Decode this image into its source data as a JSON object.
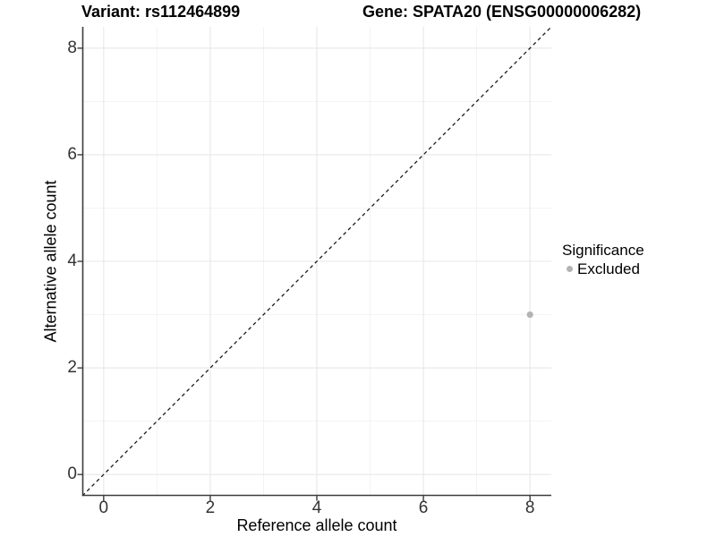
{
  "chart_data": {
    "type": "scatter",
    "titles": {
      "left": "Variant: rs112464899",
      "right": "Gene: SPATA20 (ENSG00000006282)"
    },
    "xlabel": "Reference allele count",
    "ylabel": "Alternative allele count",
    "xlim": [
      -0.4,
      8.4
    ],
    "ylim": [
      -0.4,
      8.4
    ],
    "xticks": [
      0,
      2,
      4,
      6,
      8
    ],
    "yticks": [
      0,
      2,
      4,
      6,
      8
    ],
    "xminor": [
      1,
      3,
      5,
      7
    ],
    "yminor": [
      1,
      3,
      5,
      7
    ],
    "grid": "on",
    "identity_line": {
      "equation": "y = x",
      "style": "dashed"
    },
    "series": [
      {
        "name": "Excluded",
        "color": "#b3b3b3",
        "points": [
          [
            8,
            3
          ]
        ]
      }
    ],
    "legend": {
      "title": "Significance",
      "position": "right",
      "items": [
        {
          "label": "Excluded",
          "color": "#b3b3b3"
        }
      ]
    }
  },
  "colors": {
    "background": "#ffffff",
    "grid_major": "#e7e7e7",
    "grid_minor": "#f2f2f2",
    "axis_line": "#3c3c3c",
    "tick_mark": "#3c3c3c",
    "identity_line": "#1a1a1a",
    "point": "#b3b3b3"
  }
}
